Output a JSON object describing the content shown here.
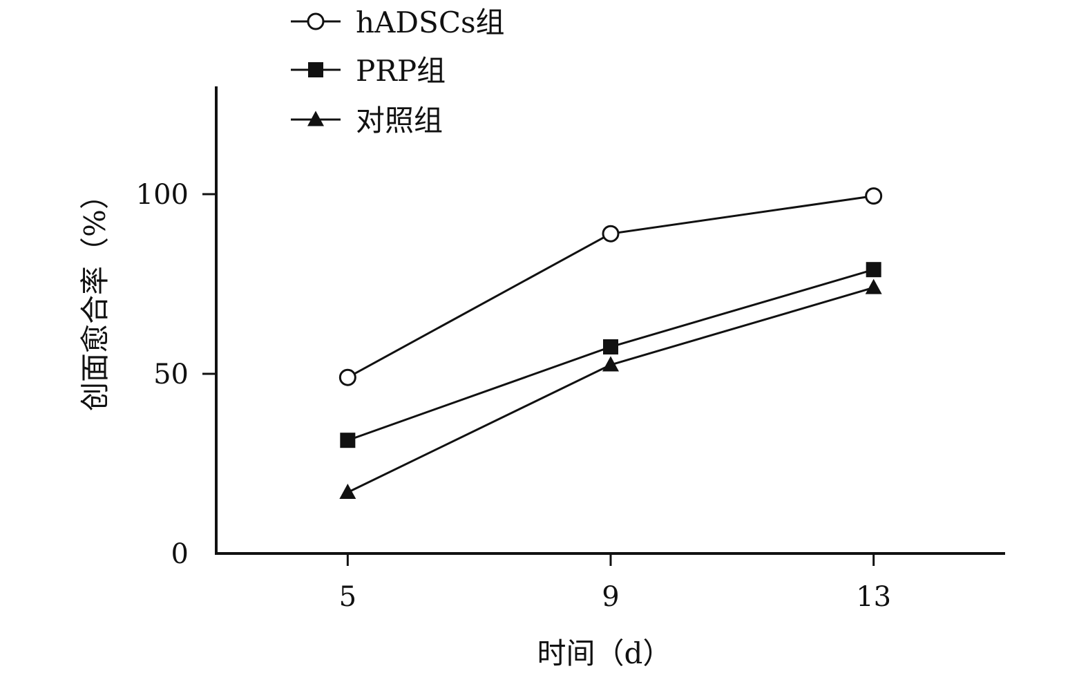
{
  "chart_data": {
    "type": "line",
    "title": "",
    "xlabel": "时间（d）",
    "ylabel": "创面愈合率（%）",
    "x": [
      5,
      9,
      13
    ],
    "x_tick_labels": [
      "5",
      "9",
      "13"
    ],
    "xlim": [
      3,
      15
    ],
    "ylim": [
      0,
      130
    ],
    "y_ticks": [
      0,
      50,
      100
    ],
    "y_tick_labels": [
      "0",
      "50",
      "100"
    ],
    "grid": false,
    "legend_position": "top-left",
    "series": [
      {
        "name": "hADSCs组",
        "marker": "open-circle",
        "values": [
          49,
          89,
          99.5
        ]
      },
      {
        "name": "PRP组",
        "marker": "filled-square",
        "values": [
          31.5,
          57.5,
          79
        ]
      },
      {
        "name": "对照组",
        "marker": "filled-triangle",
        "values": [
          17,
          52.5,
          74
        ]
      }
    ],
    "colors": {
      "line": "#111111",
      "marker_fill": "#111111",
      "open_marker_fill": "#ffffff"
    }
  }
}
